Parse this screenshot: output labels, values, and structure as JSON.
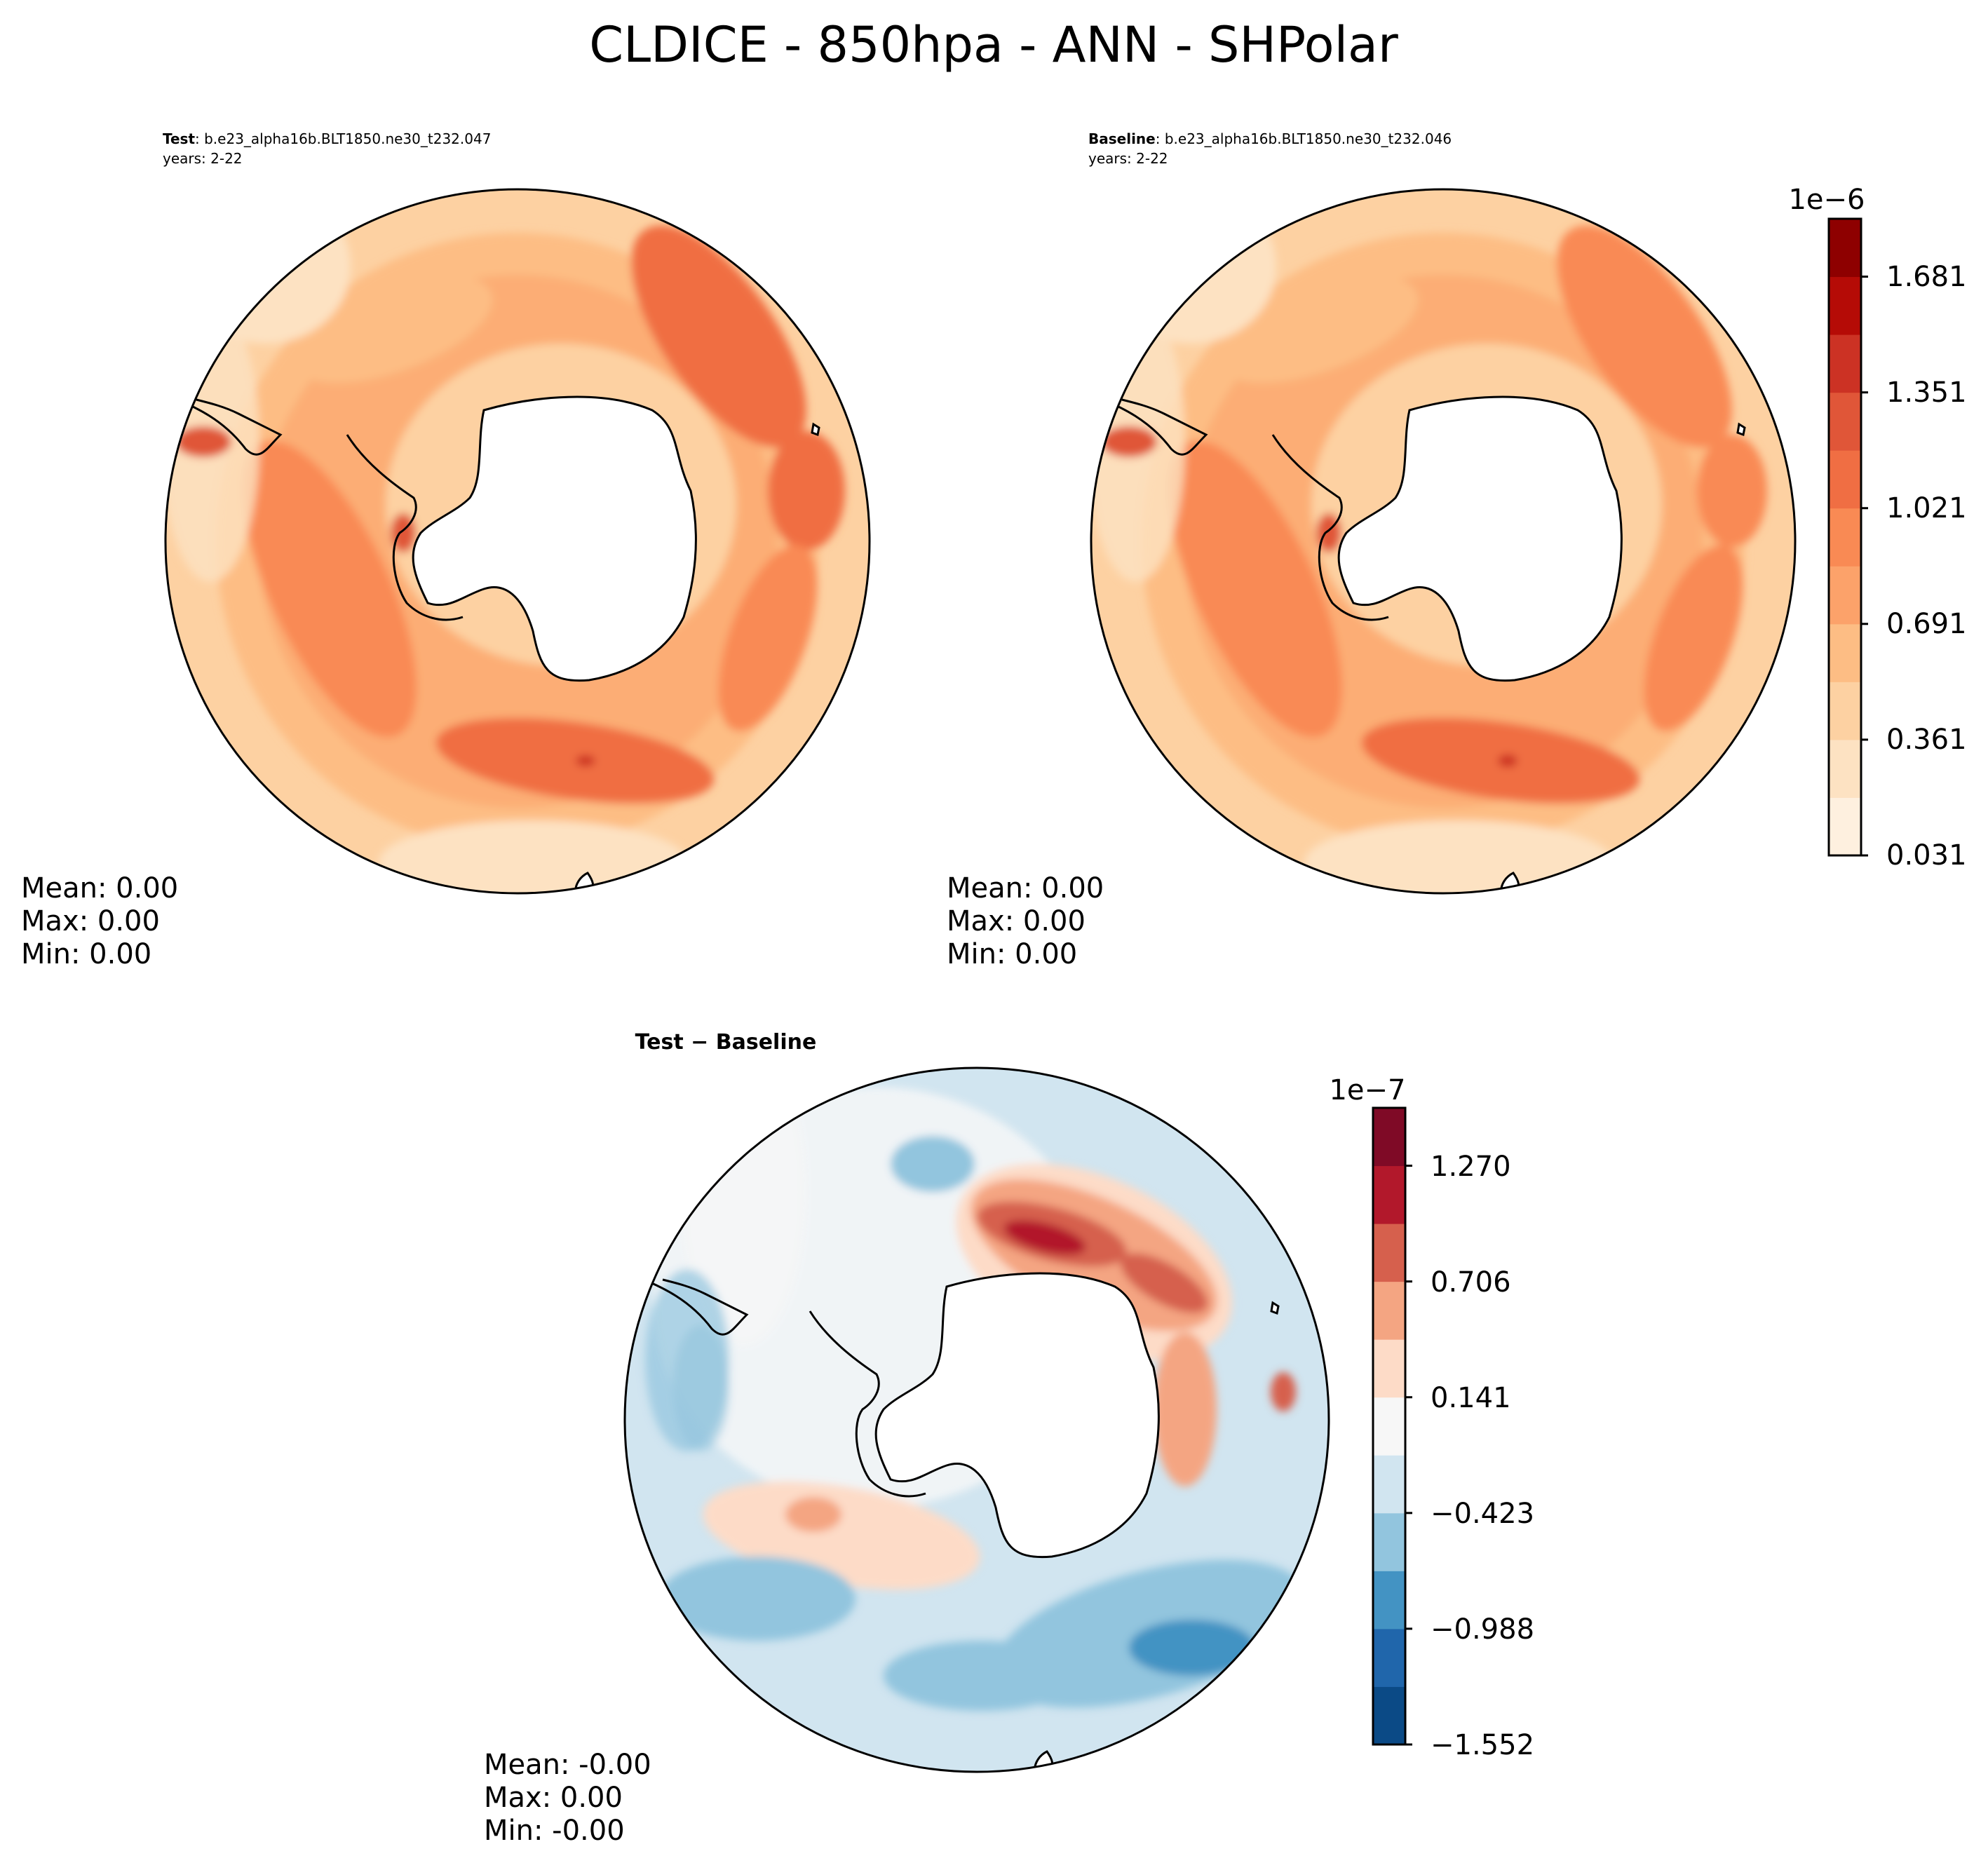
{
  "chart_data": [
    {
      "type": "heatmap",
      "panel": "test",
      "projection": "SHPolar",
      "label_bold": "Test",
      "label_rest": ": b.e23_alpha16b.BLT1850.ne30_t232.047",
      "years": "years: 2-22",
      "stats": {
        "mean": "Mean:  0.00",
        "max": "Max:  0.00",
        "min": "Min:  0.00"
      },
      "colormap": "OrRd-like (shared colorbar)"
    },
    {
      "type": "heatmap",
      "panel": "baseline",
      "projection": "SHPolar",
      "label_bold": "Baseline",
      "label_rest": ": b.e23_alpha16b.BLT1850.ne30_t232.046",
      "years": "years: 2-22",
      "stats": {
        "mean": "Mean:  0.00",
        "max": "Max:  0.00",
        "min": "Min:  0.00"
      },
      "colorbar": {
        "exponent": "1e−6",
        "ticks": [
          "0.031",
          "0.361",
          "0.691",
          "1.021",
          "1.351",
          "1.681"
        ],
        "levels": 11,
        "range": [
          0.031,
          1.846
        ],
        "colors": [
          "#fef0df",
          "#fde2c2",
          "#fdd1a2",
          "#fdbd84",
          "#fca26a",
          "#f98a54",
          "#f06e43",
          "#e05638",
          "#cc3224",
          "#b50b06",
          "#8e0000"
        ]
      }
    },
    {
      "type": "heatmap",
      "panel": "difference",
      "projection": "SHPolar",
      "title": "Test − Baseline",
      "stats": {
        "mean": "Mean: -0.00",
        "max": "Max:  0.00",
        "min": "Min: -0.00"
      },
      "colorbar": {
        "exponent": "1e−7",
        "ticks": [
          "−1.552",
          "−0.988",
          "−0.423",
          "0.141",
          "0.706",
          "1.270"
        ],
        "levels": 11,
        "range": [
          -1.552,
          1.552
        ],
        "colors": [
          "#0b4a86",
          "#2066ab",
          "#4393c3",
          "#92c5de",
          "#d1e5f0",
          "#f7f7f7",
          "#fddbc7",
          "#f4a582",
          "#d6604d",
          "#b2182b",
          "#7f0a26"
        ]
      }
    }
  ],
  "figure_title": "CLDICE - 850hpa - ANN - SHPolar"
}
